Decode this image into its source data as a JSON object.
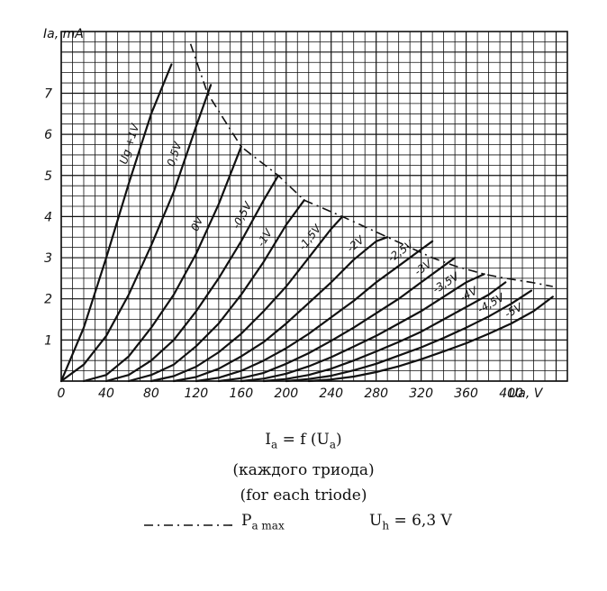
{
  "chart_data": {
    "type": "line",
    "title": "",
    "xlabel": "U_a, V",
    "ylabel": "I_a, mA",
    "xlim": [
      0,
      450
    ],
    "ylim": [
      0,
      8
    ],
    "x_ticks": [
      "0",
      "40",
      "80",
      "120",
      "160",
      "200",
      "240",
      "280",
      "320",
      "360",
      "400"
    ],
    "y_ticks": [
      "1",
      "2",
      "3",
      "4",
      "5",
      "6",
      "7"
    ],
    "y_label_text": "Ia, mA",
    "x_label_text": "Ua, V",
    "grid": true,
    "series": [
      {
        "name": "Ug=+1V",
        "label": "Ug +1V",
        "x": [
          0,
          20,
          40,
          60,
          80,
          98
        ],
        "y": [
          0,
          1.3,
          3.0,
          4.8,
          6.5,
          7.7
        ]
      },
      {
        "name": "Ug=0.5V",
        "label": "0,5V",
        "x": [
          0,
          20,
          40,
          60,
          80,
          100,
          120,
          133
        ],
        "y": [
          0,
          0.4,
          1.1,
          2.1,
          3.3,
          4.6,
          6.2,
          7.2
        ]
      },
      {
        "name": "Ug=0V",
        "label": "0V",
        "x": [
          20,
          40,
          60,
          80,
          100,
          120,
          140,
          160
        ],
        "y": [
          0,
          0.15,
          0.6,
          1.3,
          2.1,
          3.1,
          4.3,
          5.7
        ]
      },
      {
        "name": "Ug=-0.5V",
        "label": "-0,5V",
        "x": [
          40,
          60,
          80,
          100,
          120,
          140,
          160,
          180,
          193
        ],
        "y": [
          0,
          0.15,
          0.5,
          1.0,
          1.7,
          2.5,
          3.4,
          4.4,
          5.0
        ]
      },
      {
        "name": "Ug=-1V",
        "label": "-1V",
        "x": [
          60,
          80,
          100,
          120,
          140,
          160,
          180,
          200,
          216
        ],
        "y": [
          0,
          0.15,
          0.4,
          0.85,
          1.4,
          2.1,
          2.9,
          3.8,
          4.4
        ]
      },
      {
        "name": "Ug=-1.5V",
        "label": "-1,5V",
        "x": [
          80,
          100,
          120,
          140,
          160,
          180,
          200,
          220,
          240,
          250
        ],
        "y": [
          0,
          0.12,
          0.35,
          0.7,
          1.15,
          1.7,
          2.3,
          3.0,
          3.7,
          4.0
        ]
      },
      {
        "name": "Ug=-2V",
        "label": "-2V",
        "x": [
          100,
          120,
          140,
          160,
          180,
          200,
          220,
          240,
          260,
          280,
          290
        ],
        "y": [
          0,
          0.1,
          0.3,
          0.6,
          0.95,
          1.4,
          1.9,
          2.4,
          2.95,
          3.4,
          3.5
        ]
      },
      {
        "name": "Ug=-2.5V",
        "label": "-2,5V",
        "x": [
          120,
          140,
          160,
          180,
          200,
          220,
          240,
          260,
          280,
          300,
          320,
          330
        ],
        "y": [
          0,
          0.08,
          0.25,
          0.5,
          0.8,
          1.15,
          1.55,
          1.95,
          2.4,
          2.8,
          3.2,
          3.4
        ]
      },
      {
        "name": "Ug=-3V",
        "label": "-3V",
        "x": [
          140,
          160,
          180,
          200,
          220,
          240,
          260,
          280,
          300,
          320,
          340,
          350
        ],
        "y": [
          0,
          0.07,
          0.2,
          0.42,
          0.68,
          0.98,
          1.3,
          1.65,
          2.0,
          2.4,
          2.8,
          3.0
        ]
      },
      {
        "name": "Ug=-3.5V",
        "label": "-3,5V",
        "x": [
          160,
          180,
          200,
          220,
          240,
          260,
          280,
          300,
          320,
          340,
          360,
          376
        ],
        "y": [
          0,
          0.06,
          0.18,
          0.36,
          0.58,
          0.84,
          1.1,
          1.4,
          1.7,
          2.05,
          2.4,
          2.6
        ]
      },
      {
        "name": "Ug=-4V",
        "label": "-4V",
        "x": [
          180,
          200,
          220,
          240,
          260,
          280,
          300,
          320,
          340,
          360,
          380,
          395
        ],
        "y": [
          0,
          0.05,
          0.15,
          0.3,
          0.5,
          0.72,
          0.95,
          1.2,
          1.5,
          1.8,
          2.1,
          2.4
        ]
      },
      {
        "name": "Ug=-4.5V",
        "label": "-4,5V",
        "x": [
          200,
          220,
          240,
          260,
          280,
          300,
          320,
          340,
          360,
          380,
          400,
          418
        ],
        "y": [
          0,
          0.05,
          0.13,
          0.26,
          0.42,
          0.62,
          0.82,
          1.05,
          1.3,
          1.57,
          1.88,
          2.2
        ]
      },
      {
        "name": "Ug=-5V",
        "label": "-5V",
        "x": [
          220,
          240,
          260,
          280,
          300,
          320,
          340,
          360,
          380,
          400,
          420,
          437
        ],
        "y": [
          0,
          0.04,
          0.11,
          0.22,
          0.36,
          0.53,
          0.72,
          0.92,
          1.15,
          1.4,
          1.7,
          2.05
        ]
      }
    ],
    "pmax_curve": {
      "name": "Pa max",
      "x": [
        115,
        130,
        160,
        193,
        216,
        250,
        290,
        330,
        350,
        376,
        395,
        418,
        437
      ],
      "y": [
        8.2,
        7.0,
        5.7,
        5.0,
        4.4,
        4.0,
        3.5,
        3.0,
        2.8,
        2.6,
        2.5,
        2.4,
        2.3
      ]
    },
    "pmax_legend_label": "P",
    "pmax_legend_sub": "a max",
    "formula_left": "I",
    "formula_left_sub": "a",
    "formula_mid": " = f (U",
    "formula_mid_sub": "a",
    "formula_right": ")",
    "caption_ru": "(каждого триода)",
    "caption_en": "(for each triode)",
    "heater_label": "U",
    "heater_sub": "h",
    "heater_value": " = 6,3 V"
  }
}
